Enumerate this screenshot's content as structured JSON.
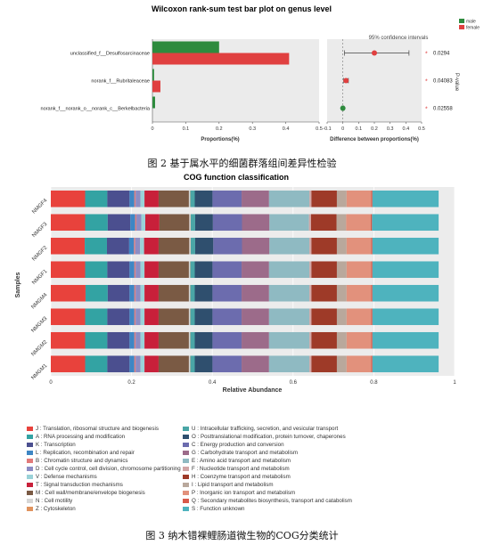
{
  "figure1": {
    "title": "Wilcoxon rank-sum test bar plot on genus level",
    "groups": [
      {
        "name": "male",
        "color": "#2e8b3e"
      },
      {
        "name": "female",
        "color": "#e04040"
      }
    ],
    "ci_label": "95% confidence intervals",
    "left_xlabel": "Proportions(%)",
    "right_xlabel": "Difference between proportions(%)",
    "right_ylabel": "P-value",
    "left_ticks": [
      "0",
      "0.1",
      "0.2",
      "0.3",
      "0.4",
      "0.5"
    ],
    "right_ticks": [
      "-0.1",
      "0",
      "0.1",
      "0.2",
      "0.3",
      "0.4",
      "0.5"
    ],
    "significance_mark": "*",
    "caption": "图 2  基于属水平的细菌群落组间差异性检验"
  },
  "figure2": {
    "title": "COG function classification",
    "ylabel": "Samples",
    "xlabel": "Relative Abundance",
    "ticks": [
      "0",
      "0.2",
      "0.4",
      "0.6",
      "0.8",
      "1"
    ],
    "caption": "图 3  纳木错裸鲤肠道微生物的COG分类统计"
  },
  "legend": [
    {
      "code": "J",
      "label": "J : Translation, ribosomal structure and biogenesis",
      "color": "#e8423c"
    },
    {
      "code": "A",
      "label": "A : RNA processing and modification",
      "color": "#33a3a3"
    },
    {
      "code": "K",
      "label": "K : Transcription",
      "color": "#4b4f8f"
    },
    {
      "code": "L",
      "label": "L : Replication, recombination and repair",
      "color": "#3e86c4"
    },
    {
      "code": "B",
      "label": "B : Chromatin structure and dynamics",
      "color": "#e27a7a"
    },
    {
      "code": "D",
      "label": "D : Cell cycle control, cell division, chromosome partitioning",
      "color": "#8c8cc4"
    },
    {
      "code": "V",
      "label": "V : Defense mechanisms",
      "color": "#9ad2d8"
    },
    {
      "code": "T",
      "label": "T : Signal transduction mechanisms",
      "color": "#c8203a"
    },
    {
      "code": "M",
      "label": "M : Cell wall/membrane/envelope biogenesis",
      "color": "#7a5a44"
    },
    {
      "code": "N",
      "label": "N : Cell motility",
      "color": "#d6d6d6"
    },
    {
      "code": "Z",
      "label": "Z : Cytoskeleton",
      "color": "#e0935e"
    },
    {
      "code": "U",
      "label": "U : Intracellular trafficking, secretion, and vesicular transport",
      "color": "#4aa6a6"
    },
    {
      "code": "O",
      "label": "O : Posttranslational modification, protein turnover, chaperones",
      "color": "#2f4f6e"
    },
    {
      "code": "C",
      "label": "C : Energy production and conversion",
      "color": "#6c6cae"
    },
    {
      "code": "G",
      "label": "G : Carbohydrate transport and metabolism",
      "color": "#9c6b8a"
    },
    {
      "code": "E",
      "label": "E : Amino acid transport and metabolism",
      "color": "#8fbac2"
    },
    {
      "code": "F",
      "label": "F : Nucleotide transport and metabolism",
      "color": "#d1a6a6"
    },
    {
      "code": "H",
      "label": "H : Coenzyme transport and metabolism",
      "color": "#9e3a28"
    },
    {
      "code": "I",
      "label": "I : Lipid transport and metabolism",
      "color": "#b9a89c"
    },
    {
      "code": "P",
      "label": "P : Inorganic ion transport and metabolism",
      "color": "#e2917c"
    },
    {
      "code": "Q",
      "label": "Q : Secondary metabolites biosynthesis, transport and catabolism",
      "color": "#d85a4a"
    },
    {
      "code": "S",
      "label": "S : Function unknown",
      "color": "#4eb3be"
    }
  ],
  "chart_data": [
    {
      "type": "bar",
      "title": "Wilcoxon rank-sum test bar plot on genus level",
      "orientation": "horizontal",
      "categories": [
        "unclassified_f__Desulfosarcinaceae",
        "norank_f__Rubritaleaceae",
        "norank_f__norank_o__norank_c__Berkelbacteria"
      ],
      "series": [
        {
          "name": "male",
          "color": "#2e8b3e",
          "values": [
            0.2,
            0.005,
            0.008
          ]
        },
        {
          "name": "female",
          "color": "#e04040",
          "values": [
            0.41,
            0.024,
            0.0
          ]
        }
      ],
      "xlabel": "Proportions(%)",
      "xlim": [
        0,
        0.5
      ],
      "difference": {
        "label": "Difference between proportions(%)",
        "ci_label": "95% confidence intervals",
        "xlim": [
          -0.1,
          0.5
        ],
        "estimates": [
          0.2,
          0.02,
          0.0
        ],
        "ci_low": [
          0.01,
          0.005,
          -0.005
        ],
        "ci_high": [
          0.42,
          0.035,
          0.006
        ],
        "point_colors": [
          "#e04040",
          "#e04040",
          "#2e8b3e"
        ]
      },
      "p_values": [
        "0.0294",
        "0.04083",
        "0.02558"
      ],
      "legend_position": "top-right"
    },
    {
      "type": "bar",
      "stacked": true,
      "orientation": "horizontal",
      "title": "COG function classification",
      "xlabel": "Relative Abundance",
      "ylabel": "Samples",
      "xlim": [
        0,
        1
      ],
      "samples": [
        "NMGF4",
        "NMGF3",
        "NMGF2",
        "NMGF1",
        "NMGM4",
        "NMGM3",
        "NMGM2",
        "NMGM1"
      ],
      "categories": [
        "J",
        "A",
        "K",
        "L",
        "B",
        "D",
        "V",
        "T",
        "M",
        "N",
        "Z",
        "U",
        "O",
        "C",
        "G",
        "E",
        "F",
        "H",
        "I",
        "P",
        "Q",
        "S"
      ],
      "values": [
        [
          0.085,
          0.055,
          0.055,
          0.012,
          0.003,
          0.012,
          0.01,
          0.035,
          0.075,
          0.003,
          0.0005,
          0.011,
          0.044,
          0.072,
          0.068,
          0.1,
          0.005,
          0.063,
          0.024,
          0.061,
          0.003,
          0.164
        ],
        [
          0.085,
          0.056,
          0.056,
          0.012,
          0.003,
          0.012,
          0.01,
          0.035,
          0.074,
          0.003,
          0.0005,
          0.011,
          0.044,
          0.072,
          0.068,
          0.098,
          0.005,
          0.063,
          0.024,
          0.061,
          0.003,
          0.165
        ],
        [
          0.084,
          0.055,
          0.055,
          0.012,
          0.003,
          0.012,
          0.01,
          0.036,
          0.076,
          0.003,
          0.0005,
          0.011,
          0.045,
          0.071,
          0.068,
          0.099,
          0.005,
          0.063,
          0.024,
          0.061,
          0.003,
          0.164
        ],
        [
          0.085,
          0.055,
          0.055,
          0.012,
          0.003,
          0.012,
          0.01,
          0.035,
          0.075,
          0.003,
          0.0005,
          0.011,
          0.044,
          0.072,
          0.068,
          0.1,
          0.005,
          0.063,
          0.024,
          0.061,
          0.003,
          0.164
        ],
        [
          0.086,
          0.055,
          0.054,
          0.012,
          0.003,
          0.012,
          0.01,
          0.035,
          0.075,
          0.003,
          0.0005,
          0.011,
          0.044,
          0.072,
          0.068,
          0.1,
          0.005,
          0.063,
          0.024,
          0.061,
          0.003,
          0.164
        ],
        [
          0.085,
          0.055,
          0.055,
          0.012,
          0.003,
          0.012,
          0.01,
          0.035,
          0.075,
          0.003,
          0.0005,
          0.011,
          0.044,
          0.072,
          0.068,
          0.1,
          0.005,
          0.063,
          0.024,
          0.061,
          0.003,
          0.164
        ],
        [
          0.085,
          0.055,
          0.055,
          0.012,
          0.003,
          0.012,
          0.01,
          0.035,
          0.075,
          0.003,
          0.0005,
          0.011,
          0.044,
          0.072,
          0.068,
          0.1,
          0.005,
          0.063,
          0.024,
          0.061,
          0.003,
          0.164
        ],
        [
          0.085,
          0.055,
          0.055,
          0.012,
          0.003,
          0.012,
          0.01,
          0.035,
          0.075,
          0.003,
          0.0005,
          0.011,
          0.044,
          0.072,
          0.068,
          0.1,
          0.005,
          0.063,
          0.024,
          0.061,
          0.003,
          0.164
        ]
      ]
    }
  ]
}
